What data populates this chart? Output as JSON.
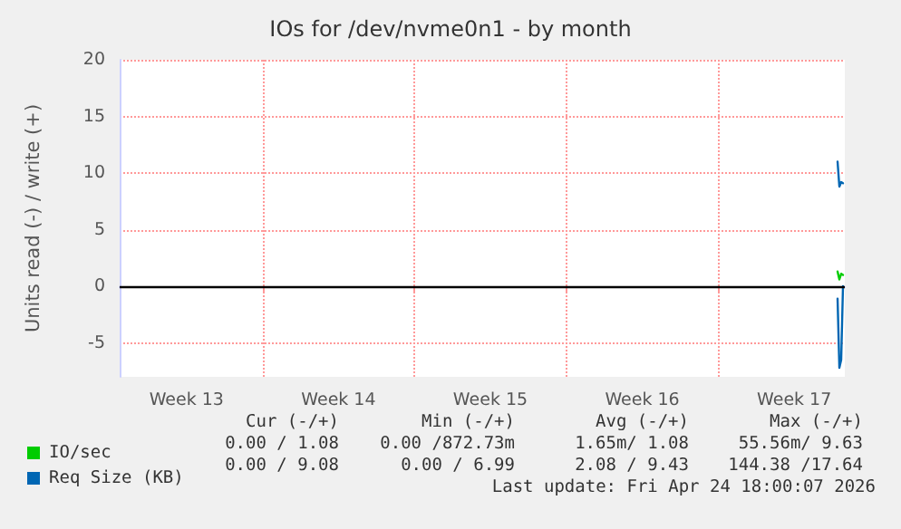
{
  "chart_data": {
    "type": "line",
    "title": "IOs for /dev/nvme0n1 - by month",
    "ylabel": "Units read (-) / write (+)",
    "x": [
      "2026-04-25T12:00",
      "2026-04-25T14:00",
      "2026-04-25T16:00",
      "2026-04-25T18:00"
    ],
    "series": [
      {
        "name": "IO/sec",
        "color": "#00cc00",
        "values": [
          1.3,
          0.6,
          1.1,
          1.0
        ]
      },
      {
        "name": "Req Size (KB)",
        "color": "#0066b3",
        "values": [
          11,
          8.8,
          9.2,
          9.1
        ]
      },
      {
        "color": "#0066b3",
        "values": [
          -1.1,
          -7.2,
          -6.5,
          0
        ]
      }
    ],
    "xlim": [
      "2026-03-23T10:00",
      "2026-04-25T20:00"
    ],
    "xticks": [
      {
        "value": "2026-03-26T12:00",
        "label": "Week 13"
      },
      {
        "value": "2026-03-30T00:00",
        "label": null
      },
      {
        "value": "2026-04-02T12:00",
        "label": "Week 14"
      },
      {
        "value": "2026-04-06T00:00",
        "label": null
      },
      {
        "value": "2026-04-09T12:00",
        "label": "Week 15"
      },
      {
        "value": "2026-04-13T00:00",
        "label": null
      },
      {
        "value": "2026-04-16T12:00",
        "label": "Week 16"
      },
      {
        "value": "2026-04-20T00:00",
        "label": null
      },
      {
        "value": "2026-04-23T12:00",
        "label": "Week 17"
      }
    ],
    "ylim": [
      -8,
      20
    ],
    "yticks": [
      -5,
      0,
      5,
      10,
      15,
      20
    ],
    "ref_lines": [
      {
        "axis": "y",
        "value": 0,
        "color": "#000000"
      }
    ],
    "grid": true,
    "legend": "bottom left",
    "marker": "none",
    "line_style": "solid",
    "annotations": [
      "Cur (-/+)",
      "Min (-/+)",
      "Avg (-/+)",
      "Max (-/+)",
      "0.00 / 1.08",
      "0.00 /872.73m",
      "1.65m/ 1.08",
      "55.56m/ 9.63",
      "0.00 / 9.08",
      "0.00 / 6.99",
      "2.08 / 9.43",
      "144.38 /17.64",
      "Last update: Fri Apr 24 18:00:07 2026"
    ]
  }
}
